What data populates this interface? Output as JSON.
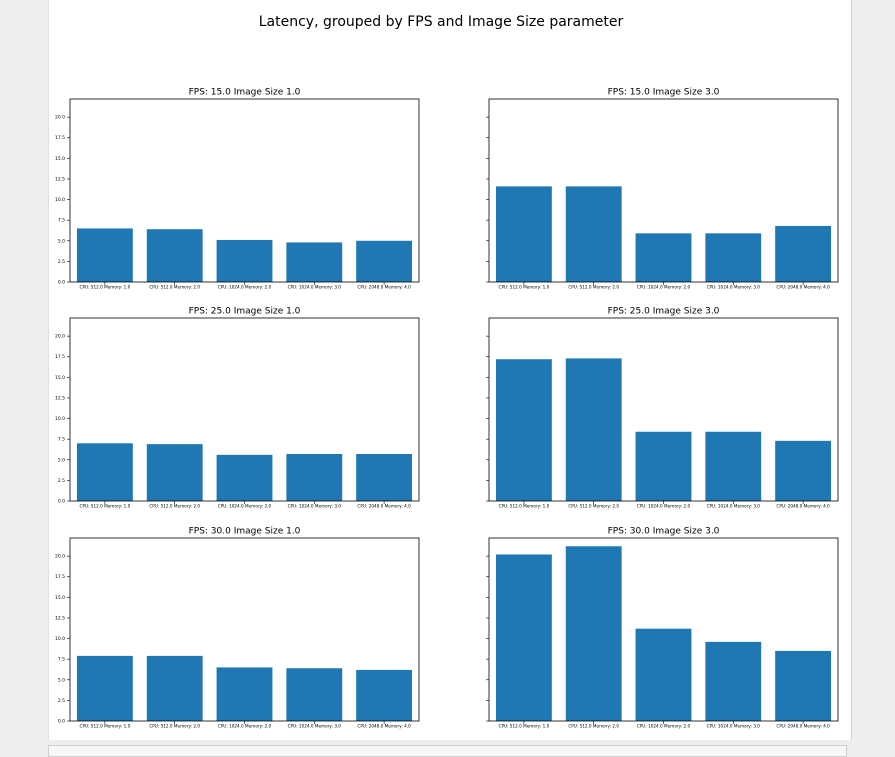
{
  "figure_title": "Latency, grouped by FPS and Image Size parameter",
  "chart_data": [
    {
      "type": "bar",
      "title": "FPS: 15.0 Image Size 1.0",
      "color": "#1f77b4",
      "categories": [
        "CPU: 512.0 Memory: 1.0",
        "CPU: 512.0 Memory: 2.0",
        "CPU: 1024.0 Memory: 2.0",
        "CPU: 1024.0 Memory: 3.0",
        "CPU: 2048.0 Memory: 4.0"
      ],
      "values": [
        6.5,
        6.4,
        5.1,
        4.8,
        5.0
      ],
      "ylim": [
        0,
        22.2
      ],
      "show_ytick_labels": true,
      "yticks": [
        {
          "value": 0,
          "label": "0.0"
        },
        2.5,
        {
          "value": 5,
          "label": "5.0"
        },
        7.5,
        {
          "value": 10,
          "label": "10.0"
        },
        12.5,
        {
          "value": 15,
          "label": "15.0"
        },
        17.5,
        {
          "value": 20,
          "label": "20.0"
        }
      ]
    },
    {
      "type": "bar",
      "title": "FPS: 15.0 Image Size 3.0",
      "color": "#1f77b4",
      "categories": [
        "CPU: 512.0 Memory: 1.0",
        "CPU: 512.0 Memory: 2.0",
        "CPU: 1024.0 Memory: 2.0",
        "CPU: 1024.0 Memory: 3.0",
        "CPU: 2048.0 Memory: 4.0"
      ],
      "values": [
        11.6,
        11.6,
        5.9,
        5.9,
        6.8
      ],
      "ylim": [
        0,
        22.2
      ],
      "show_ytick_labels": false,
      "yticks": [
        0,
        2.5,
        5,
        7.5,
        10,
        12.5,
        15,
        17.5,
        20
      ]
    },
    {
      "type": "bar",
      "title": "FPS: 25.0 Image Size 1.0",
      "color": "#1f77b4",
      "categories": [
        "CPU: 512.0 Memory: 1.0",
        "CPU: 512.0 Memory: 2.0",
        "CPU: 1024.0 Memory: 2.0",
        "CPU: 1024.0 Memory: 3.0",
        "CPU: 2048.0 Memory: 4.0"
      ],
      "values": [
        7.0,
        6.9,
        5.6,
        5.7,
        5.7
      ],
      "ylim": [
        0,
        22.2
      ],
      "show_ytick_labels": true,
      "yticks": [
        {
          "value": 0,
          "label": "0.0"
        },
        2.5,
        {
          "value": 5,
          "label": "5.0"
        },
        7.5,
        {
          "value": 10,
          "label": "10.0"
        },
        12.5,
        {
          "value": 15,
          "label": "15.0"
        },
        17.5,
        {
          "value": 20,
          "label": "20.0"
        }
      ]
    },
    {
      "type": "bar",
      "title": "FPS: 25.0 Image Size 3.0",
      "color": "#1f77b4",
      "categories": [
        "CPU: 512.0 Memory: 1.0",
        "CPU: 512.0 Memory: 2.0",
        "CPU: 1024.0 Memory: 2.0",
        "CPU: 1024.0 Memory: 3.0",
        "CPU: 2048.0 Memory: 4.0"
      ],
      "values": [
        17.2,
        17.3,
        8.4,
        8.4,
        7.3
      ],
      "ylim": [
        0,
        22.2
      ],
      "show_ytick_labels": false,
      "yticks": [
        0,
        2.5,
        5,
        7.5,
        10,
        12.5,
        15,
        17.5,
        20
      ]
    },
    {
      "type": "bar",
      "title": "FPS: 30.0 Image Size 1.0",
      "color": "#1f77b4",
      "categories": [
        "CPU: 512.0 Memory: 1.0",
        "CPU: 512.0 Memory: 2.0",
        "CPU: 1024.0 Memory: 2.0",
        "CPU: 1024.0 Memory: 3.0",
        "CPU: 2048.0 Memory: 4.0"
      ],
      "values": [
        7.9,
        7.9,
        6.5,
        6.4,
        6.2
      ],
      "ylim": [
        0,
        22.2
      ],
      "show_ytick_labels": true,
      "yticks": [
        {
          "value": 0,
          "label": "0.0"
        },
        2.5,
        {
          "value": 5,
          "label": "5.0"
        },
        7.5,
        {
          "value": 10,
          "label": "10.0"
        },
        12.5,
        {
          "value": 15,
          "label": "15.0"
        },
        17.5,
        {
          "value": 20,
          "label": "20.0"
        }
      ]
    },
    {
      "type": "bar",
      "title": "FPS: 30.0 Image Size 3.0",
      "color": "#1f77b4",
      "categories": [
        "CPU: 512.0 Memory: 1.0",
        "CPU: 512.0 Memory: 2.0",
        "CPU: 1024.0 Memory: 2.0",
        "CPU: 1024.0 Memory: 3.0",
        "CPU: 2048.0 Memory: 4.0"
      ],
      "values": [
        20.2,
        21.2,
        11.2,
        9.6,
        8.5
      ],
      "ylim": [
        0,
        22.2
      ],
      "show_ytick_labels": false,
      "yticks": [
        0,
        2.5,
        5,
        7.5,
        10,
        12.5,
        15,
        17.5,
        20
      ]
    }
  ]
}
